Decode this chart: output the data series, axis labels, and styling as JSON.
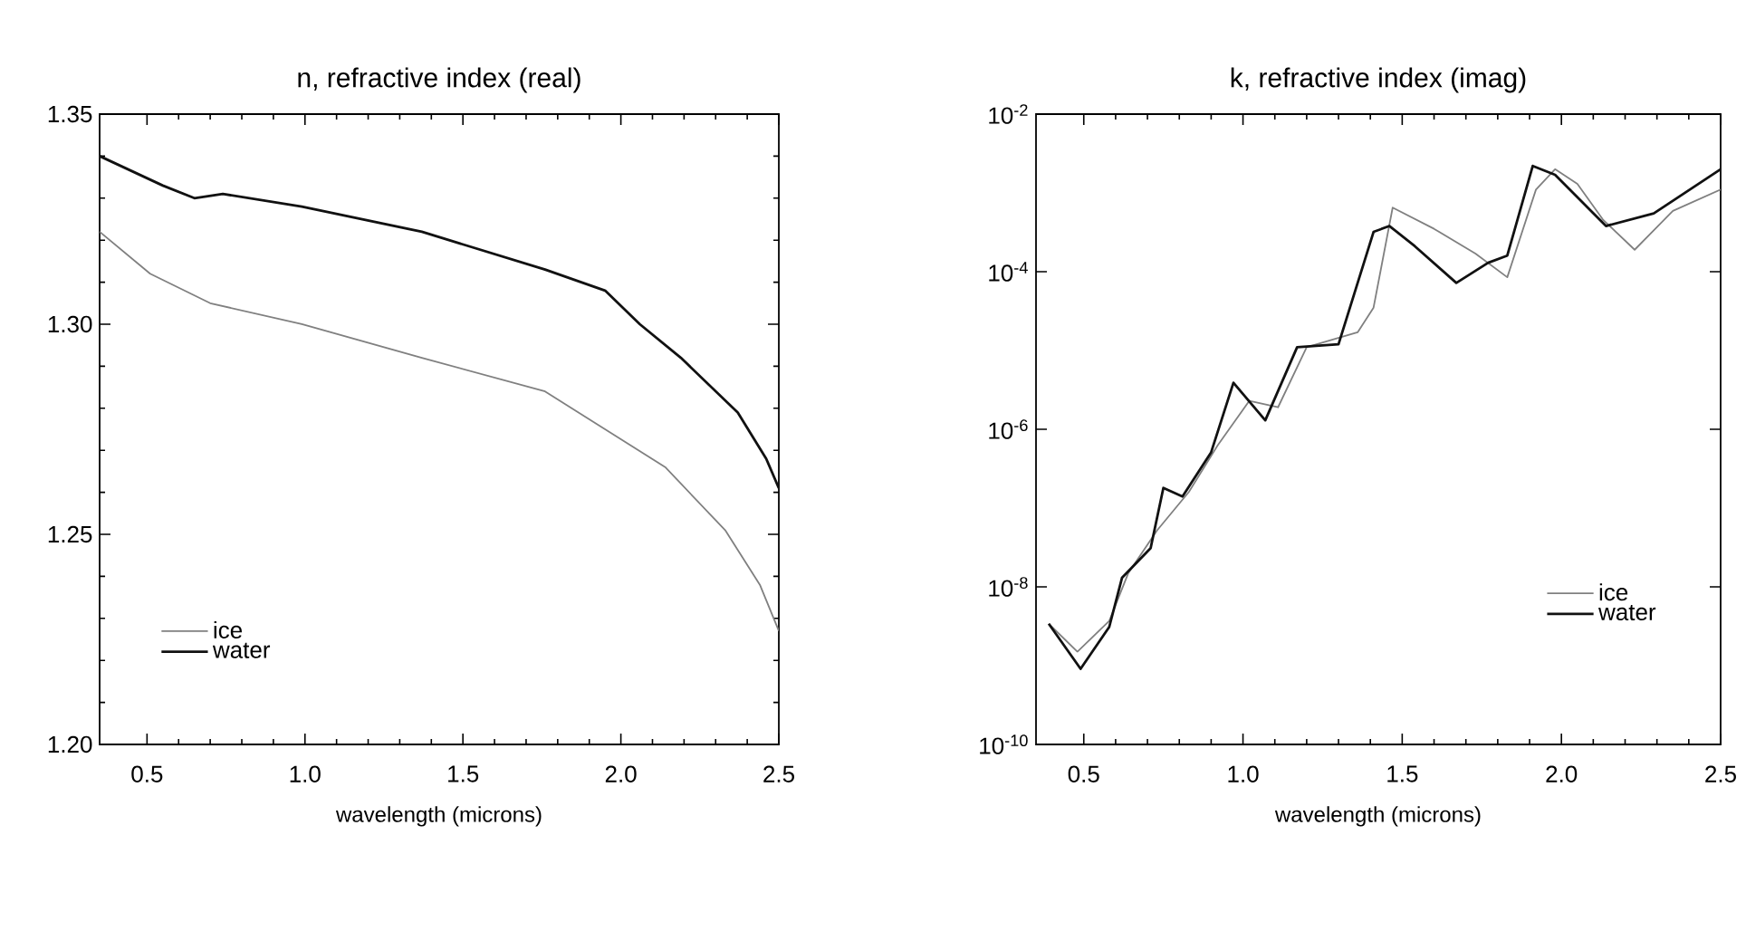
{
  "chart_data": [
    {
      "type": "line",
      "title": "n, refractive index (real)",
      "xlabel": "wavelength (microns)",
      "xlim": [
        0.35,
        2.5
      ],
      "ylim": [
        1.2,
        1.35
      ],
      "xticks": [
        {
          "value": 0.5,
          "label": "0.5"
        },
        {
          "value": 1.0,
          "label": "1.0"
        },
        {
          "value": 1.5,
          "label": "1.5"
        },
        {
          "value": 2.0,
          "label": "2.0"
        },
        {
          "value": 2.5,
          "label": "2.5"
        }
      ],
      "yticks": [
        {
          "value": 1.2,
          "label": "1.20"
        },
        {
          "value": 1.25,
          "label": "1.25"
        },
        {
          "value": 1.3,
          "label": "1.30"
        },
        {
          "value": 1.35,
          "label": "1.35"
        }
      ],
      "legend": "bottom left",
      "series": [
        {
          "name": "ice",
          "color": "#808080",
          "x": [
            0.35,
            0.51,
            0.7,
            0.99,
            1.37,
            1.76,
            1.95,
            2.14,
            2.33,
            2.44,
            2.5
          ],
          "values": [
            1.322,
            1.312,
            1.305,
            1.3,
            1.292,
            1.284,
            1.275,
            1.266,
            1.251,
            1.238,
            1.227
          ]
        },
        {
          "name": "water",
          "color": "#111111",
          "x": [
            0.35,
            0.55,
            0.65,
            0.74,
            0.99,
            1.37,
            1.76,
            1.95,
            2.06,
            2.19,
            2.37,
            2.46,
            2.5
          ],
          "values": [
            1.34,
            1.333,
            1.33,
            1.331,
            1.328,
            1.322,
            1.313,
            1.308,
            1.3,
            1.292,
            1.279,
            1.268,
            1.261
          ]
        }
      ]
    },
    {
      "type": "line",
      "title": "k, refractive index (imag)",
      "xlabel": "wavelength (microns)",
      "xlim": [
        0.35,
        2.5
      ],
      "ylim": [
        1e-10,
        0.01
      ],
      "log": "y",
      "xticks": [
        {
          "value": 0.5,
          "label": "0.5"
        },
        {
          "value": 1.0,
          "label": "1.0"
        },
        {
          "value": 1.5,
          "label": "1.5"
        },
        {
          "value": 2.0,
          "label": "2.0"
        },
        {
          "value": 2.5,
          "label": "2.5"
        }
      ],
      "yticks": [
        {
          "value": 1e-10,
          "label": "10$^{-10}$"
        },
        {
          "value": 1e-08,
          "label": "10$^{-8}$"
        },
        {
          "value": 1e-06,
          "label": "10$^{-6}$"
        },
        {
          "value": 0.0001,
          "label": "10$^{-4}$"
        },
        {
          "value": 0.01,
          "label": "10$^{-2}$"
        }
      ],
      "legend": "bottom right",
      "series": [
        {
          "name": "ice",
          "color": "#808080",
          "x": [
            0.39,
            0.48,
            0.58,
            0.64,
            0.73,
            0.83,
            0.92,
            1.02,
            1.11,
            1.2,
            1.36,
            1.41,
            1.47,
            1.6,
            1.73,
            1.83,
            1.92,
            1.98,
            2.05,
            2.13,
            2.23,
            2.35,
            2.5
          ],
          "values": [
            3.4e-09,
            1.5e-09,
            3.7e-09,
            1.5e-08,
            5.2e-08,
            1.6e-07,
            6.2e-07,
            2.3e-06,
            1.9e-06,
            1.1e-05,
            1.7e-05,
            3.5e-05,
            0.00065,
            0.00035,
            0.00017,
            8.5e-05,
            0.0011,
            0.002,
            0.0013,
            0.00046,
            0.00019,
            0.00059,
            0.0011
          ]
        },
        {
          "name": "water",
          "color": "#111111",
          "x": [
            0.39,
            0.49,
            0.58,
            0.62,
            0.71,
            0.75,
            0.81,
            0.9,
            0.97,
            1.07,
            1.17,
            1.3,
            1.41,
            1.46,
            1.54,
            1.67,
            1.77,
            1.83,
            1.91,
            1.98,
            2.14,
            2.29,
            2.5
          ],
          "values": [
            3.4e-09,
            9.1e-10,
            3.1e-09,
            1.3e-08,
            3.1e-08,
            1.8e-07,
            1.4e-07,
            5.1e-07,
            3.9e-06,
            1.3e-06,
            1.1e-05,
            1.2e-05,
            0.00032,
            0.00038,
            0.00021,
            7.2e-05,
            0.00013,
            0.00016,
            0.0022,
            0.0017,
            0.00038,
            0.00055,
            0.002
          ]
        }
      ]
    }
  ]
}
